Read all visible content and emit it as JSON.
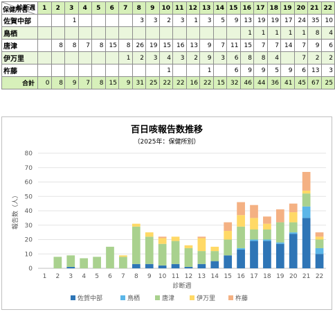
{
  "table": {
    "corner_top": "診断週",
    "corner_bottom": "保健所名",
    "weeks": [
      "1",
      "2",
      "3",
      "4",
      "5",
      "6",
      "7",
      "8",
      "9",
      "10",
      "11",
      "12",
      "13",
      "14",
      "15",
      "16",
      "17",
      "18",
      "19",
      "20",
      "21",
      "22"
    ],
    "rows": [
      {
        "name": "佐賀中部",
        "cells": [
          "",
          "",
          "1",
          "",
          "",
          "",
          "",
          "3",
          "3",
          "2",
          "3",
          "1",
          "3",
          "5",
          "9",
          "13",
          "19",
          "19",
          "17",
          "24",
          "35",
          "10"
        ]
      },
      {
        "name": "鳥栖",
        "cells": [
          "",
          "",
          "",
          "",
          "",
          "",
          "",
          "",
          "",
          "",
          "",
          "",
          "",
          "",
          "",
          "1",
          "1",
          "1",
          "1",
          "1",
          "8",
          "4"
        ]
      },
      {
        "name": "唐津",
        "cells": [
          "",
          "8",
          "8",
          "7",
          "8",
          "15",
          "8",
          "26",
          "19",
          "15",
          "16",
          "13",
          "9",
          "7",
          "11",
          "15",
          "7",
          "7",
          "14",
          "7",
          "9",
          "6"
        ]
      },
      {
        "name": "伊万里",
        "cells": [
          "",
          "",
          "",
          "",
          "",
          "",
          "1",
          "2",
          "3",
          "4",
          "3",
          "2",
          "9",
          "3",
          "6",
          "8",
          "8",
          "4",
          "",
          "7",
          "2",
          "2"
        ]
      },
      {
        "name": "杵藤",
        "cells": [
          "",
          "",
          "",
          "",
          "",
          "",
          "",
          "",
          "",
          "1",
          "",
          "",
          "1",
          "",
          "6",
          "9",
          "9",
          "5",
          "9",
          "6",
          "13",
          "3"
        ]
      }
    ],
    "total_label": "合計",
    "totals": [
      "0",
      "8",
      "9",
      "7",
      "8",
      "15",
      "9",
      "31",
      "25",
      "22",
      "22",
      "16",
      "22",
      "15",
      "32",
      "46",
      "44",
      "36",
      "41",
      "45",
      "67",
      "25"
    ]
  },
  "chart_data": {
    "type": "bar",
    "stacked": true,
    "title": "百日咳報告数推移",
    "subtitle": "（2025年：保健所別）",
    "xlabel": "診断週",
    "ylabel": "報告数（人）",
    "ylim": [
      0,
      80
    ],
    "yticks": [
      0,
      10,
      20,
      30,
      40,
      50,
      60,
      70,
      80
    ],
    "grid": true,
    "legend_position": "bottom",
    "categories": [
      "1",
      "2",
      "3",
      "4",
      "5",
      "6",
      "7",
      "8",
      "9",
      "10",
      "11",
      "12",
      "13",
      "14",
      "15",
      "16",
      "17",
      "18",
      "19",
      "20",
      "21",
      "22"
    ],
    "series": [
      {
        "name": "佐賀中部",
        "color": "#2e75b6",
        "values": [
          0,
          0,
          1,
          0,
          0,
          0,
          0,
          3,
          3,
          2,
          3,
          1,
          3,
          5,
          9,
          13,
          19,
          19,
          17,
          24,
          35,
          10
        ]
      },
      {
        "name": "鳥栖",
        "color": "#5bb6e8",
        "values": [
          0,
          0,
          0,
          0,
          0,
          0,
          0,
          0,
          0,
          0,
          0,
          0,
          0,
          0,
          0,
          1,
          1,
          1,
          1,
          1,
          8,
          4
        ]
      },
      {
        "name": "唐津",
        "color": "#a9d18e",
        "values": [
          0,
          8,
          8,
          7,
          8,
          15,
          8,
          26,
          19,
          15,
          16,
          13,
          9,
          7,
          11,
          15,
          7,
          7,
          14,
          7,
          9,
          6
        ]
      },
      {
        "name": "伊万里",
        "color": "#ffd966",
        "values": [
          0,
          0,
          0,
          0,
          0,
          0,
          1,
          2,
          3,
          4,
          3,
          2,
          9,
          3,
          6,
          8,
          8,
          4,
          0,
          7,
          2,
          2
        ]
      },
      {
        "name": "杵藤",
        "color": "#f4b183",
        "values": [
          0,
          0,
          0,
          0,
          0,
          0,
          0,
          0,
          0,
          1,
          0,
          0,
          1,
          0,
          6,
          9,
          9,
          5,
          9,
          6,
          13,
          3
        ]
      }
    ]
  }
}
